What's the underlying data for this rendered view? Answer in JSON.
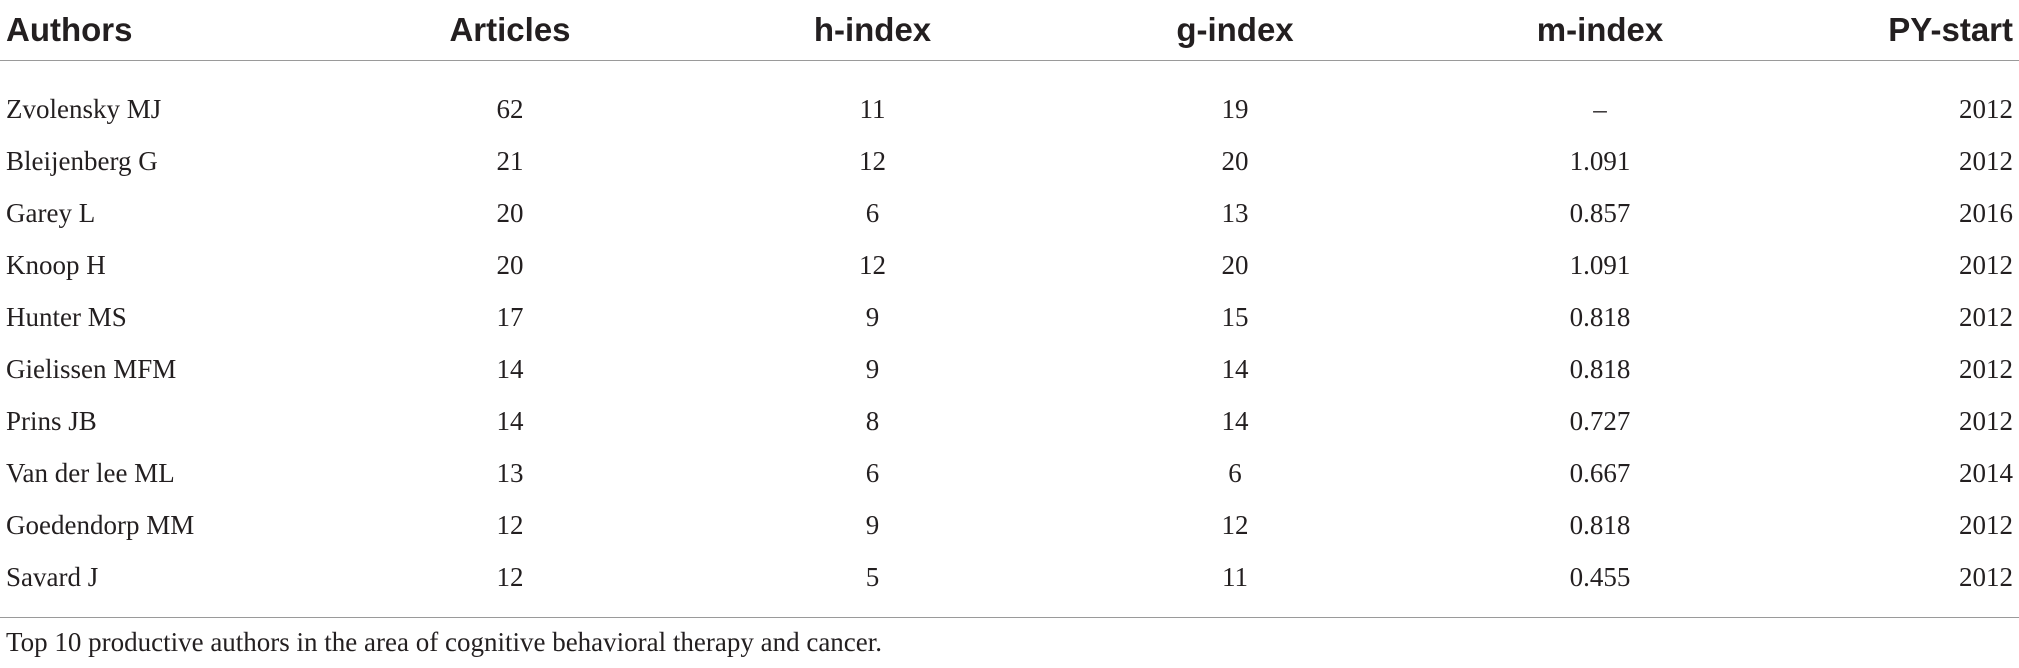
{
  "table": {
    "headers": [
      "Authors",
      "Articles",
      "h-index",
      "g-index",
      "m-index",
      "PY-start"
    ],
    "rows": [
      [
        "Zvolensky MJ",
        "62",
        "11",
        "19",
        "–",
        "2012"
      ],
      [
        "Bleijenberg G",
        "21",
        "12",
        "20",
        "1.091",
        "2012"
      ],
      [
        "Garey L",
        "20",
        "6",
        "13",
        "0.857",
        "2016"
      ],
      [
        "Knoop H",
        "20",
        "12",
        "20",
        "1.091",
        "2012"
      ],
      [
        "Hunter MS",
        "17",
        "9",
        "15",
        "0.818",
        "2012"
      ],
      [
        "Gielissen MFM",
        "14",
        "9",
        "14",
        "0.818",
        "2012"
      ],
      [
        "Prins JB",
        "14",
        "8",
        "14",
        "0.727",
        "2012"
      ],
      [
        "Van der lee ML",
        "13",
        "6",
        "6",
        "0.667",
        "2014"
      ],
      [
        "Goedendorp MM",
        "12",
        "9",
        "12",
        "0.818",
        "2012"
      ],
      [
        "Savard J",
        "12",
        "5",
        "11",
        "0.455",
        "2012"
      ]
    ]
  },
  "caption": "Top 10 productive authors in the area of cognitive behavioral therapy and cancer."
}
